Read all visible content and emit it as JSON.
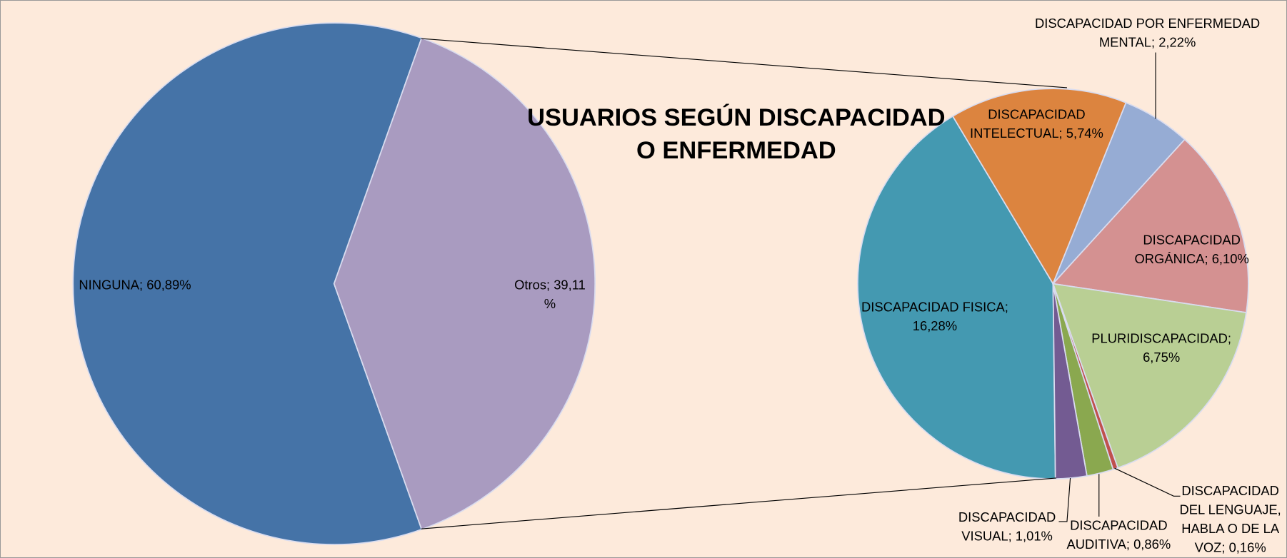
{
  "chart_data": [
    {
      "type": "pie",
      "title": "USUARIOS SEGÚN DISCAPACIDAD\nO ENFERMEDAD",
      "values": [
        60.89,
        39.11
      ],
      "value_labels": [
        "NINGUNA; 60,89%",
        "Otros; 39,11\n%"
      ],
      "colors": [
        "#4573a7",
        "#a99bc0"
      ]
    },
    {
      "type": "pie",
      "values": [
        16.28,
        5.74,
        2.22,
        6.1,
        6.75,
        0.16,
        0.86,
        1.01
      ],
      "value_labels": [
        "DISCAPACIDAD FISICA;\n16,28%",
        "DISCAPACIDAD\nINTELECTUAL; 5,74%",
        "DISCAPACIDAD POR ENFERMEDAD\nMENTAL; 2,22%",
        "DISCAPACIDAD\nORGÁNICA; 6,10%",
        "PLURIDISCAPACIDAD;\n6,75%",
        "DISCAPACIDAD\nDEL LENGUAJE,\nHABLA O DE LA\nVOZ; 0,16%",
        "DISCAPACIDAD\nAUDITIVA; 0,86%",
        "DISCAPACIDAD\nVISUAL; 1,01%"
      ],
      "colors": [
        "#4499b1",
        "#dc843f",
        "#96acd4",
        "#d49191",
        "#b9cf94",
        "#c0504d",
        "#8aa84f",
        "#735b92"
      ]
    }
  ]
}
